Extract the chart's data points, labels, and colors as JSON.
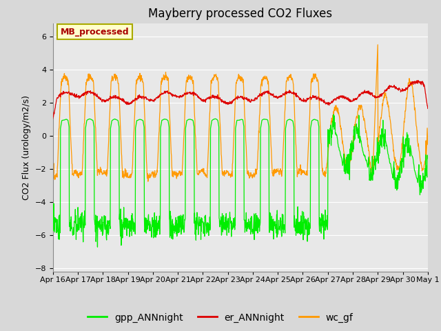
{
  "title": "Mayberry processed CO2 Fluxes",
  "ylabel": "CO2 Flux (urology/m2/s)",
  "ylim": [
    -8.2,
    6.8
  ],
  "yticks": [
    -8,
    -6,
    -4,
    -2,
    0,
    2,
    4,
    6
  ],
  "gpp_color": "#00ee00",
  "er_color": "#dd0000",
  "wc_color": "#ff9900",
  "legend_box_facecolor": "#ffffcc",
  "legend_box_edgecolor": "#aaaa00",
  "legend_box_text_color": "#aa0000",
  "legend_box_text": "MB_processed",
  "n_days": 15,
  "n_points": 1440,
  "date_labels": [
    "Apr 16",
    "Apr 17",
    "Apr 18",
    "Apr 19",
    "Apr 20",
    "Apr 21",
    "Apr 22",
    "Apr 23",
    "Apr 24",
    "Apr 25",
    "Apr 26",
    "Apr 27",
    "Apr 28",
    "Apr 29",
    "Apr 30",
    "May 1"
  ],
  "grid_color": "#ffffff",
  "title_fontsize": 12,
  "axis_fontsize": 9,
  "tick_fontsize": 8,
  "legend_fontsize": 10,
  "fig_facecolor": "#d8d8d8",
  "axes_facecolor": "#e8e8e8"
}
